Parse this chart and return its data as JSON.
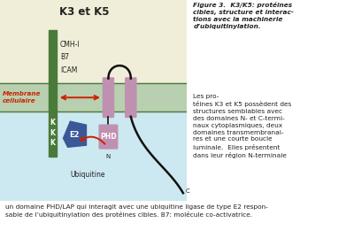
{
  "title": "K3 et K5",
  "bg_top_color": "#f0eed8",
  "bg_bottom_color": "#cce8f0",
  "membrane_color": "#b8d0b0",
  "membrane_border_color": "#4a7a3a",
  "green_bar_color": "#4a7a3a",
  "protein_tm_color": "#c090b0",
  "phd_color": "#c090b0",
  "e2_color": "#3a5898",
  "arrow_color": "#cc2200",
  "curve_color": "#111111",
  "membrane_label_color": "#cc2200",
  "text_color": "#222222",
  "caption_line1": "Figure 3.  K3/K5: protéines",
  "caption_line2": "cibles, structure et interac-",
  "caption_line3": "tions avec la machinerie",
  "caption_line4": "d’ubiquitinylation.",
  "caption_rest": "Les pro-\ntéines K3 et K5 possèdent des\nstructures semblables avec\ndes domaines N- et C-termi-\nnaux cytoplasmiques, deux\ndomaines transmembranai-\nres et une courte boucle\nluminale.  Elles présentent\ndans leur région N-terminale",
  "bottom_text_line1": "un domaine PHD/LAP qui interagit avec une ubiquitine ligase de type E2 respon-",
  "bottom_text_line2": "sable de l’ubiquitinylation des protéines cibles. B7: molécule co-activatrice.",
  "labels_cmhi": "CMH-I",
  "labels_b7": "B7",
  "labels_icam": "ICAM",
  "labels_membrane": "Membrane\ncellulaire",
  "labels_e2": "E2",
  "labels_phd": "PHD",
  "labels_n": "N",
  "labels_c": "C",
  "labels_ubiquitine": "Ubiquitine",
  "labels_k": [
    "K",
    "K",
    "K"
  ]
}
